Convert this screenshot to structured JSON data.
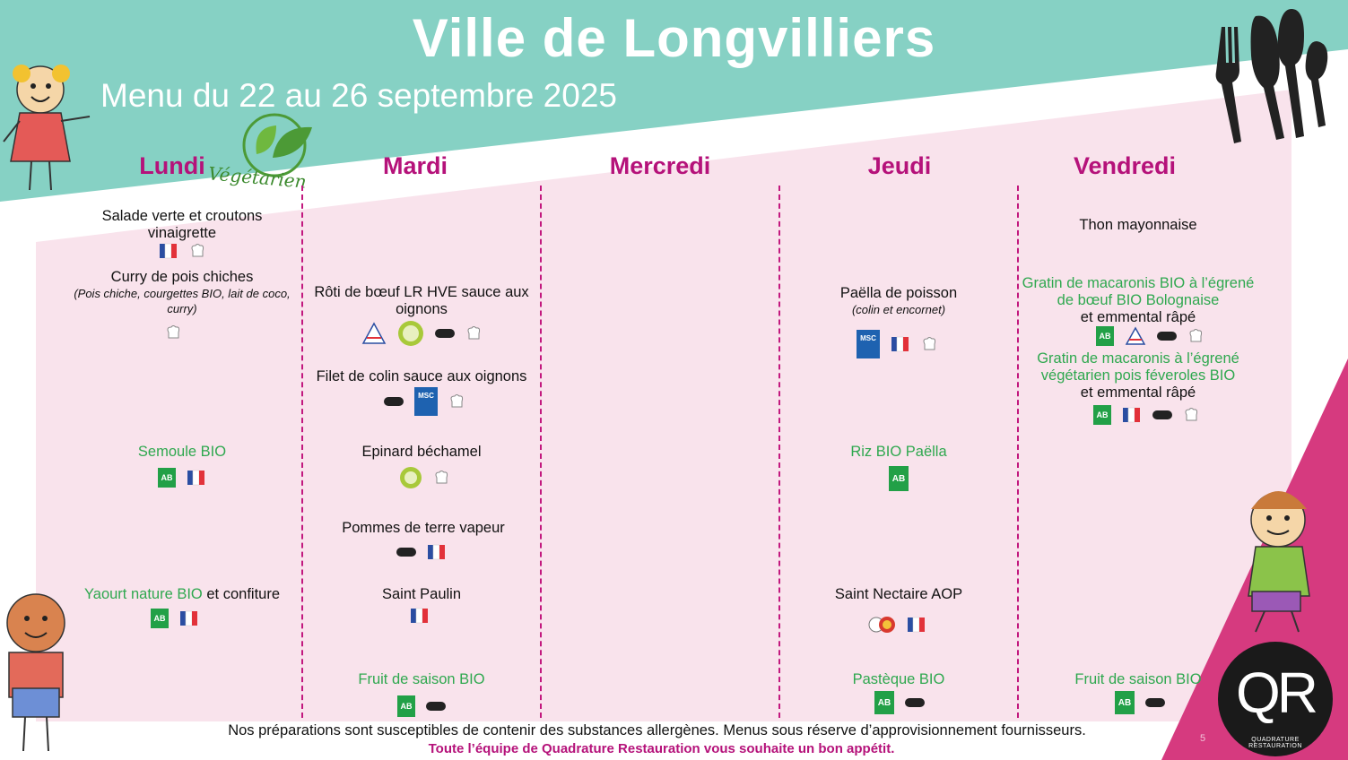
{
  "header": {
    "title": "Ville de Longvilliers",
    "subtitle": "Menu du 22 au 26 septembre 2025"
  },
  "badge": {
    "label": "Végétarien"
  },
  "days": [
    "Lundi",
    "Mardi",
    "Mercredi",
    "Jeudi",
    "Vendredi"
  ],
  "lundi": {
    "starter_line1": "Salade verte et croutons",
    "starter_line2": "vinaigrette",
    "main": "Curry de pois chiches",
    "main_detail": "(Pois chiche, courgettes BIO, lait de coco, curry)",
    "side": "Semoule BIO",
    "dairy_green": "Yaourt nature BIO",
    "dairy_rest": " et confiture"
  },
  "mardi": {
    "main1": "Rôti de bœuf LR HVE sauce aux oignons",
    "main2": "Filet de colin sauce aux oignons",
    "side1": "Epinard béchamel",
    "side2": "Pommes de terre vapeur",
    "dairy": "Saint Paulin",
    "dessert": "Fruit de saison BIO"
  },
  "jeudi": {
    "main": "Paëlla de poisson",
    "main_detail": "(colin et encornet)",
    "side": "Riz BIO Paëlla",
    "dairy": "Saint Nectaire AOP",
    "dessert": "Pastèque BIO"
  },
  "vendredi": {
    "starter": "Thon mayonnaise",
    "main1_green": "Gratin de macaronis BIO à l’égrené de bœuf BIO Bolognaise",
    "main1_rest": "et emmental râpé",
    "main2_green": "Gratin de macaronis à l’égrené végétarien pois féveroles BIO",
    "main2_rest": "et emmental râpé",
    "dessert": "Fruit de saison BIO"
  },
  "icon_labels": {
    "ab": "AB",
    "msc": "MSC",
    "origine": "origine",
    "fait_maison": "fait maison"
  },
  "footer": {
    "line1": "Nos préparations sont susceptibles de contenir des substances allergènes. Menus sous réserve d’approvisionnement fournisseurs.",
    "line2": "Toute l’équipe de Quadrature Restauration vous souhaite un bon appétit.",
    "page": "5"
  },
  "logo": {
    "letters": "QR",
    "name": "QUADRATURE RESTAURATION"
  },
  "colors": {
    "teal": "#86d1c4",
    "pink_bg": "#f9e3ec",
    "magenta": "#b5127a",
    "green_text": "#2fa84f",
    "corner_pink": "#d63a7f"
  }
}
